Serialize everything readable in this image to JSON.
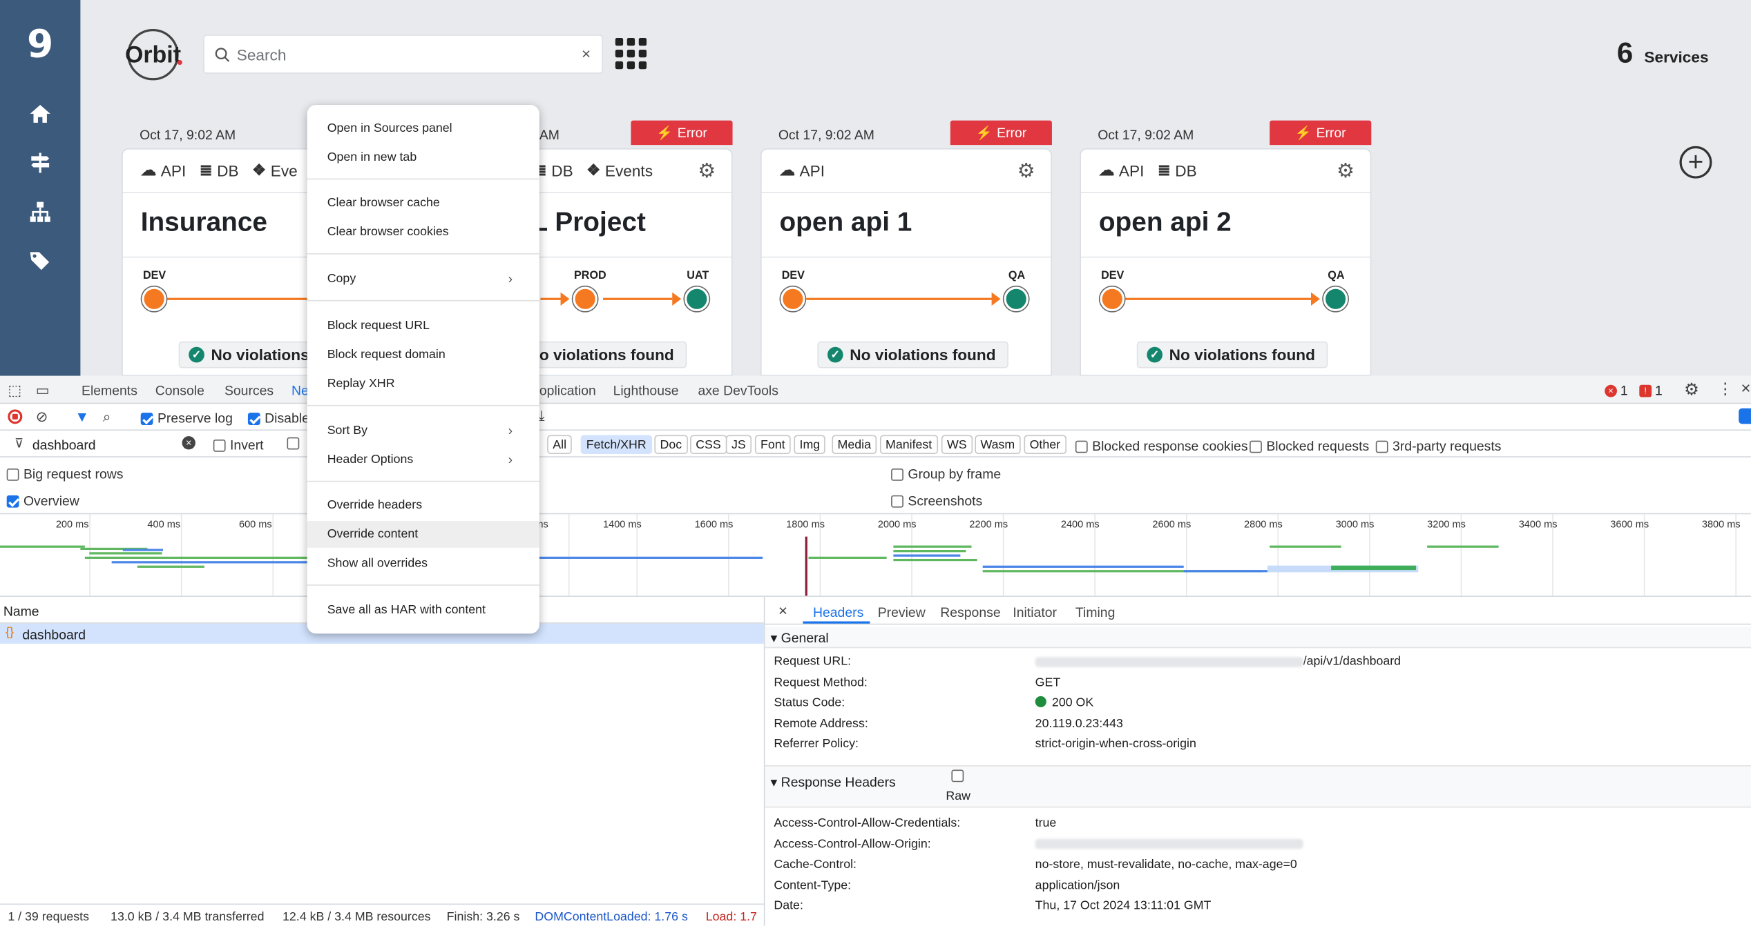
{
  "app": {
    "logo_text": "Orbit",
    "search_placeholder": "Search",
    "services_count": "6",
    "services_label": "Services",
    "cards": [
      {
        "date": "Oct 17, 9:02 AM",
        "error": "",
        "tags": [
          "API",
          "DB",
          "Eve"
        ],
        "name": "Insurance",
        "stages": [
          "DEV",
          ""
        ],
        "violations": "No violations"
      },
      {
        "date": "",
        "error": "Error",
        "tags": [
          "DB",
          "Events"
        ],
        "name": "L Project",
        "stages": [
          "PROD",
          "UAT"
        ],
        "violations": "o violations found"
      },
      {
        "date": "Oct 17, 9:02 AM",
        "error": "Error",
        "tags": [
          "API"
        ],
        "name": "open api 1",
        "stages": [
          "DEV",
          "QA"
        ],
        "violations": "No violations found"
      },
      {
        "date": "Oct 17, 9:02 AM",
        "error": "Error",
        "tags": [
          "API",
          "DB"
        ],
        "name": "open api 2",
        "stages": [
          "DEV",
          "QA"
        ],
        "violations": "No violations found"
      }
    ],
    "card2_date_partial": "AM"
  },
  "devtools": {
    "tabs": [
      "Elements",
      "Console",
      "Sources",
      "Ne",
      "oplication",
      "Lighthouse",
      "axe DevTools"
    ],
    "error_count": "1",
    "issue_count": "1",
    "toolbar": {
      "preserve_log": "Preserve log",
      "disable_cache": "Disable"
    },
    "filter": {
      "value": "dashboard",
      "invert": "Invert",
      "types": [
        "All",
        "Fetch/XHR",
        "Doc",
        "CSS",
        "JS",
        "Font",
        "Img",
        "Media",
        "Manifest",
        "WS",
        "Wasm",
        "Other"
      ],
      "blocked_cookies": "Blocked response cookies",
      "blocked_requests": "Blocked requests",
      "third_party": "3rd-party requests"
    },
    "options": {
      "big_rows": "Big request rows",
      "overview": "Overview",
      "group_by_frame": "Group by frame",
      "screenshots": "Screenshots"
    },
    "timeline_ticks": [
      "200 ms",
      "400 ms",
      "600 ms",
      "ms",
      "1400 ms",
      "1600 ms",
      "1800 ms",
      "2000 ms",
      "2200 ms",
      "2400 ms",
      "2600 ms",
      "2800 ms",
      "3000 ms",
      "3200 ms",
      "3400 ms",
      "3600 ms",
      "3800 ms"
    ],
    "name_header": "Name",
    "request_name": "dashboard",
    "detail_tabs": [
      "Headers",
      "Preview",
      "Response",
      "Initiator",
      "Timing"
    ],
    "general": {
      "title": "General",
      "rows": [
        {
          "k": "Request URL:",
          "v": "/api/v1/dashboard"
        },
        {
          "k": "Request Method:",
          "v": "GET"
        },
        {
          "k": "Status Code:",
          "v": "200 OK"
        },
        {
          "k": "Remote Address:",
          "v": "20.119.0.23:443"
        },
        {
          "k": "Referrer Policy:",
          "v": "strict-origin-when-cross-origin"
        }
      ]
    },
    "response_headers": {
      "title": "Response Headers",
      "raw": "Raw",
      "rows": [
        {
          "k": "Access-Control-Allow-Credentials:",
          "v": "true"
        },
        {
          "k": "Access-Control-Allow-Origin:",
          "v": ""
        },
        {
          "k": "Cache-Control:",
          "v": "no-store, must-revalidate, no-cache, max-age=0"
        },
        {
          "k": "Content-Type:",
          "v": "application/json"
        },
        {
          "k": "Date:",
          "v": "Thu, 17 Oct 2024 13:11:01 GMT"
        }
      ]
    },
    "status": {
      "requests": "1 / 39 requests",
      "transferred": "13.0 kB / 3.4 MB transferred",
      "resources": "12.4 kB / 3.4 MB resources",
      "finish": "Finish: 3.26 s",
      "dcl": "DOMContentLoaded: 1.76 s",
      "load": "Load: 1.7"
    }
  },
  "context_menu": {
    "items": [
      "Open in Sources panel",
      "Open in new tab",
      "Clear browser cache",
      "Clear browser cookies",
      "Copy",
      "Block request URL",
      "Block request domain",
      "Replay XHR",
      "Sort By",
      "Header Options",
      "Override headers",
      "Override content",
      "Show all overrides",
      "Save all as HAR with content"
    ]
  },
  "colors": {
    "sidebar": "#3c5a7c",
    "error": "#e03741",
    "pipeline": "#f47920",
    "success": "#14866d",
    "accent": "#1a73e8"
  }
}
